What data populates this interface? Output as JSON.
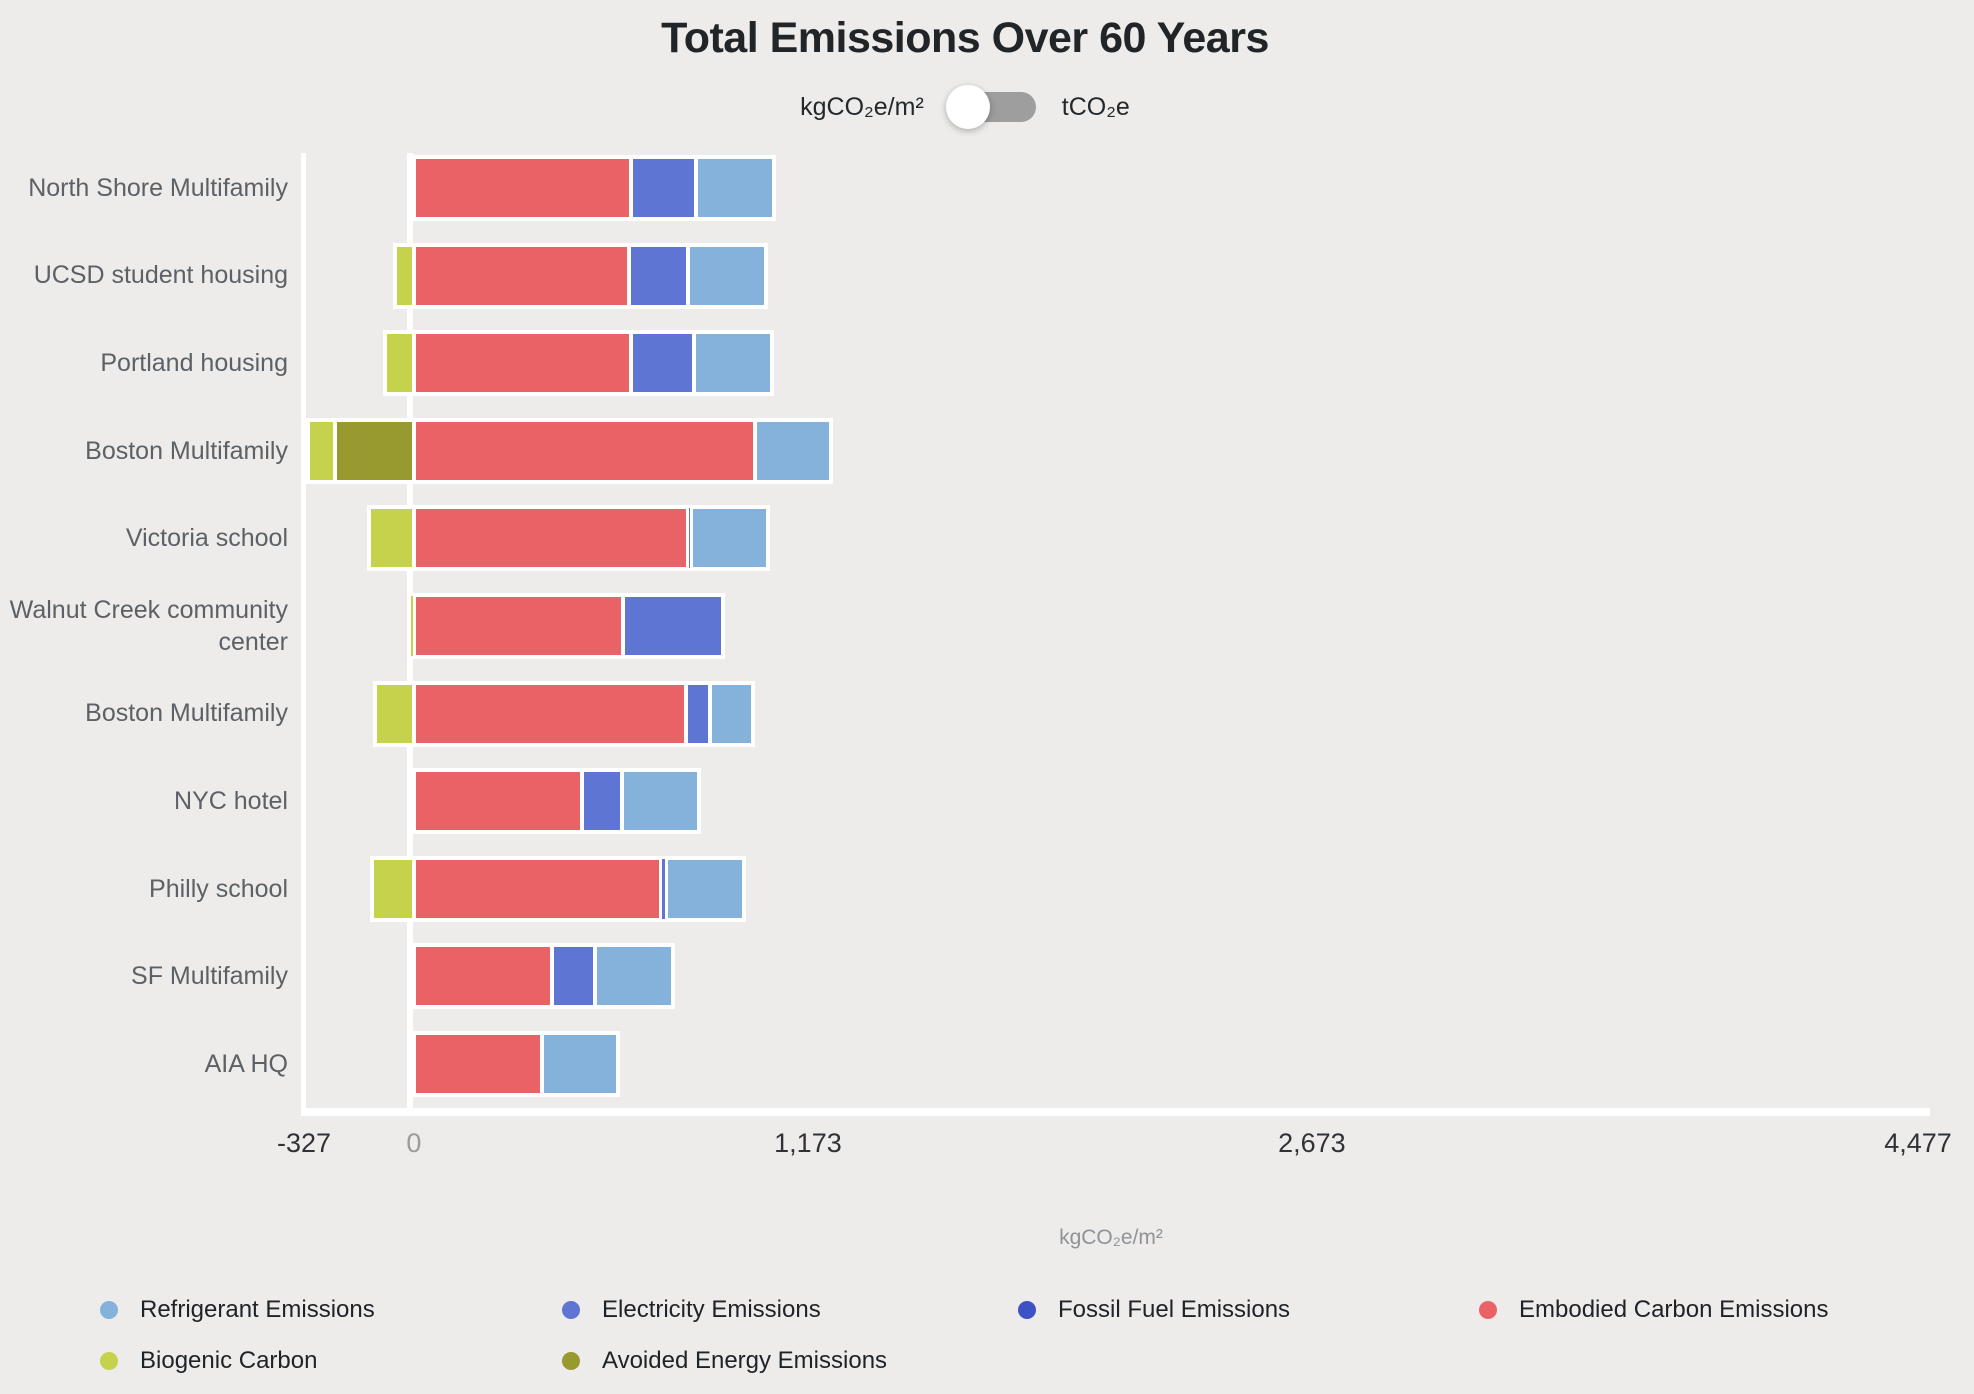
{
  "title": "Total Emissions Over 60 Years",
  "unit_toggle": {
    "left_label": "kgCO₂e/m²",
    "right_label": "tCO₂e",
    "selected": "kgCO₂e/m²"
  },
  "chart_data": {
    "type": "bar",
    "orientation": "horizontal",
    "stacked": true,
    "title": "Total Emissions Over 60 Years",
    "xlabel": "kgCO₂e/m²",
    "xlim": [
      -327,
      4477
    ],
    "x_ticks": [
      -327,
      0,
      1173,
      2673,
      4477
    ],
    "x_tick_labels": [
      "-327",
      "0",
      "1,173",
      "2,673",
      "4,477"
    ],
    "grid": false,
    "legend_position": "bottom",
    "categories": [
      "North Shore Multifamily",
      "UCSD student housing",
      "Portland housing",
      "Boston Multifamily",
      "Victoria school",
      "Walnut Creek community center",
      "Boston Multifamily",
      "NYC hotel",
      "Philly school",
      "SF Multifamily",
      "AIA HQ"
    ],
    "series": [
      {
        "name": "Biogenic Carbon",
        "color": "#c5d24c",
        "values": [
          0,
          -55,
          -85,
          -80,
          -135,
          -12,
          -115,
          0,
          -125,
          0,
          0
        ]
      },
      {
        "name": "Avoided Energy Emissions",
        "color": "#98992f",
        "values": [
          0,
          0,
          0,
          -235,
          0,
          0,
          0,
          0,
          0,
          0,
          0
        ]
      },
      {
        "name": "Embodied Carbon Emissions",
        "color": "#e96366",
        "values": [
          645,
          640,
          645,
          1015,
          815,
          622,
          810,
          500,
          735,
          410,
          382
        ]
      },
      {
        "name": "Electricity Emissions",
        "color": "#5f75d3",
        "values": [
          196,
          176,
          190,
          0,
          10,
          298,
          70,
          119,
          15,
          128,
          0
        ]
      },
      {
        "name": "Fossil Fuel Emissions",
        "color": "#3d53c5",
        "values": [
          0,
          0,
          0,
          0,
          0,
          0,
          0,
          0,
          0,
          0,
          0
        ]
      },
      {
        "name": "Refrigerant Emissions",
        "color": "#85b2db",
        "values": [
          230,
          232,
          230,
          226,
          230,
          0,
          128,
          230,
          232,
          232,
          226
        ]
      }
    ]
  },
  "legend": {
    "items": [
      {
        "label": "Refrigerant Emissions",
        "color": "#85b2db"
      },
      {
        "label": "Electricity Emissions",
        "color": "#5f75d3"
      },
      {
        "label": "Fossil Fuel Emissions",
        "color": "#3d53c5"
      },
      {
        "label": "Embodied Carbon Emissions",
        "color": "#e96366"
      },
      {
        "label": "Biogenic Carbon",
        "color": "#c5d24c"
      },
      {
        "label": "Avoided Energy Emissions",
        "color": "#98992f"
      }
    ]
  }
}
